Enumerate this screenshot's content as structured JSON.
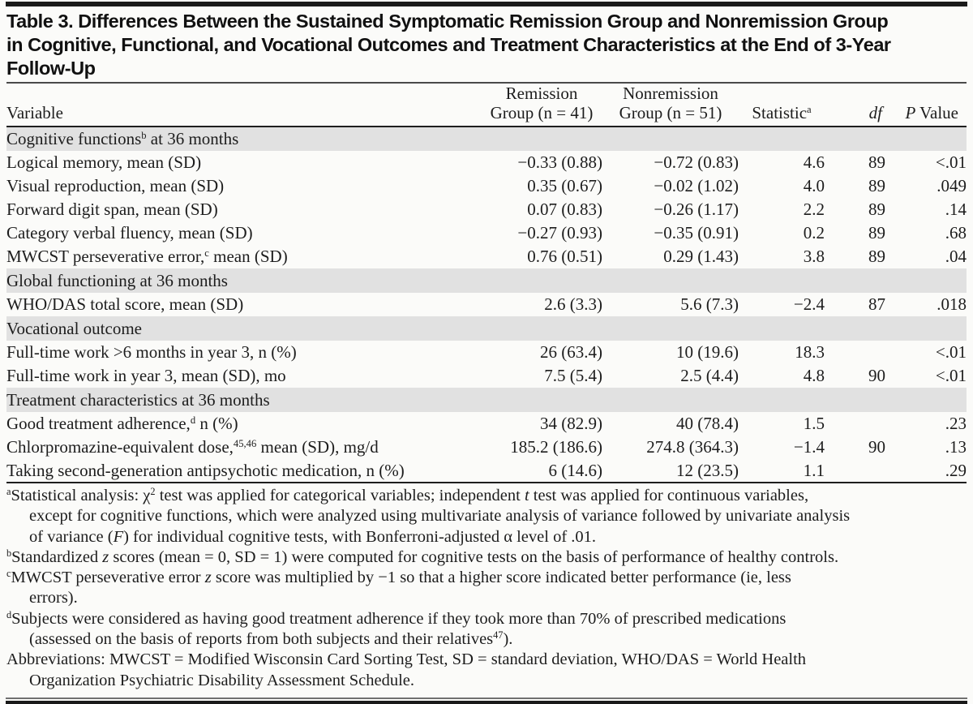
{
  "colors": {
    "section_band": "#e1e1e1",
    "top_rule": "#1a1a1a",
    "mid_rule": "#4a4a4a",
    "text": "#1d1d1d",
    "background": "#fbfbf9"
  },
  "title": {
    "lines": [
      "Table 3. Differences Between the Sustained Symptomatic Remission Group and Nonremission Group",
      "in Cognitive, Functional, and Vocational Outcomes and Treatment Characteristics at the End of 3-Year",
      "Follow-Up"
    ]
  },
  "table": {
    "columns": {
      "variable": {
        "label": "Variable"
      },
      "remission": {
        "line1": "Remission",
        "line2": "Group (n = 41)"
      },
      "nonremission": {
        "line1": "Nonremission",
        "line2": "Group (n = 51)"
      },
      "statistic": {
        "rich": [
          [
            "Statistic",
            ""
          ],
          [
            "a",
            "sup"
          ]
        ]
      },
      "df": {
        "rich": [
          [
            "df",
            "i"
          ]
        ]
      },
      "pvalue": {
        "rich": [
          [
            "P",
            "i"
          ],
          [
            " Value",
            ""
          ]
        ]
      }
    },
    "sections": [
      {
        "header_rich": [
          [
            "Cognitive functions",
            ""
          ],
          [
            "b",
            "sup"
          ],
          [
            " at 36 months",
            ""
          ]
        ],
        "rows": [
          {
            "variable": [
              [
                "Logical memory, mean (SD)",
                ""
              ]
            ],
            "remission": "−0.33 (0.88)",
            "nonremission": "−0.72 (0.83)",
            "statistic": "4.6",
            "df": "89",
            "p": "<.01"
          },
          {
            "variable": [
              [
                "Visual reproduction, mean (SD)",
                ""
              ]
            ],
            "remission": "0.35 (0.67)",
            "nonremission": "−0.02 (1.02)",
            "statistic": "4.0",
            "df": "89",
            "p": ".049"
          },
          {
            "variable": [
              [
                "Forward digit span, mean (SD)",
                ""
              ]
            ],
            "remission": "0.07 (0.83)",
            "nonremission": "−0.26 (1.17)",
            "statistic": "2.2",
            "df": "89",
            "p": ".14"
          },
          {
            "variable": [
              [
                "Category verbal fluency, mean (SD)",
                ""
              ]
            ],
            "remission": "−0.27 (0.93)",
            "nonremission": "−0.35 (0.91)",
            "statistic": "0.2",
            "df": "89",
            "p": ".68"
          },
          {
            "variable": [
              [
                "MWCST perseverative error,",
                ""
              ],
              [
                "c",
                "sup"
              ],
              [
                " mean (SD)",
                ""
              ]
            ],
            "remission": "0.76 (0.51)",
            "nonremission": "0.29 (1.43)",
            "statistic": "3.8",
            "df": "89",
            "p": ".04"
          }
        ]
      },
      {
        "header_rich": [
          [
            "Global functioning at 36 months",
            ""
          ]
        ],
        "rows": [
          {
            "variable": [
              [
                "WHO/DAS total score, mean (SD)",
                ""
              ]
            ],
            "remission": "2.6 (3.3)",
            "nonremission": "5.6 (7.3)",
            "statistic": "−2.4",
            "df": "87",
            "p": ".018"
          }
        ]
      },
      {
        "header_rich": [
          [
            "Vocational outcome",
            ""
          ]
        ],
        "rows": [
          {
            "variable": [
              [
                "Full-time work >6 months in year 3, n (%)",
                ""
              ]
            ],
            "remission": "26 (63.4)",
            "nonremission": "10 (19.6)",
            "statistic": "18.3",
            "df": "",
            "p": "<.01"
          },
          {
            "variable": [
              [
                "Full-time work in year 3, mean (SD), mo",
                ""
              ]
            ],
            "remission": "7.5 (5.4)",
            "nonremission": "2.5 (4.4)",
            "statistic": "4.8",
            "df": "90",
            "p": "<.01"
          }
        ]
      },
      {
        "header_rich": [
          [
            "Treatment characteristics at 36 months",
            ""
          ]
        ],
        "rows": [
          {
            "variable": [
              [
                "Good treatment adherence,",
                ""
              ],
              [
                "d",
                "sup"
              ],
              [
                " n (%)",
                ""
              ]
            ],
            "remission": "34 (82.9)",
            "nonremission": "40 (78.4)",
            "statistic": "1.5",
            "df": "",
            "p": ".23"
          },
          {
            "variable": [
              [
                "Chlorpromazine-equivalent dose,",
                ""
              ],
              [
                "45,46",
                "sup"
              ],
              [
                " mean (SD), mg/d",
                ""
              ]
            ],
            "remission": "185.2 (186.6)",
            "nonremission": "274.8 (364.3)",
            "statistic": "−1.4",
            "df": "90",
            "p": ".13"
          },
          {
            "variable": [
              [
                "Taking second-generation antipsychotic medication, n (%)",
                ""
              ]
            ],
            "remission": "6 (14.6)",
            "nonremission": "12 (23.5)",
            "statistic": "1.1",
            "df": "",
            "p": ".29"
          }
        ]
      }
    ]
  },
  "footnotes": [
    {
      "lines": [
        [
          [
            "a",
            "sup"
          ],
          [
            "Statistical analysis: χ",
            ""
          ],
          [
            "2",
            "sup"
          ],
          [
            " test was applied for categorical variables; independent ",
            ""
          ],
          [
            "t",
            "i"
          ],
          [
            " test was applied for continuous variables,",
            ""
          ]
        ],
        [
          [
            "except for cognitive functions, which were analyzed using multivariate analysis of variance followed by univariate analysis",
            ""
          ]
        ],
        [
          [
            "of variance (",
            ""
          ],
          [
            "F",
            "i"
          ],
          [
            ") for individual cognitive tests, with Bonferroni-adjusted α level of .01.",
            ""
          ]
        ]
      ]
    },
    {
      "lines": [
        [
          [
            "b",
            "sup"
          ],
          [
            "Standardized ",
            ""
          ],
          [
            "z",
            "i"
          ],
          [
            " scores (mean = 0, SD = 1) were computed for cognitive tests on the basis of performance of healthy controls.",
            ""
          ]
        ]
      ]
    },
    {
      "lines": [
        [
          [
            "c",
            "sup"
          ],
          [
            "MWCST perseverative error ",
            ""
          ],
          [
            "z",
            "i"
          ],
          [
            " score was multiplied by −1 so that a higher score indicated better performance (ie, less",
            ""
          ]
        ],
        [
          [
            "errors).",
            ""
          ]
        ]
      ]
    },
    {
      "lines": [
        [
          [
            "d",
            "sup"
          ],
          [
            "Subjects were considered as having good treatment adherence if they took more than 70% of prescribed medications",
            ""
          ]
        ],
        [
          [
            "(assessed on the basis of reports from both subjects and their relatives",
            ""
          ],
          [
            "47",
            "sup"
          ],
          [
            ").",
            ""
          ]
        ]
      ]
    },
    {
      "lines": [
        [
          [
            "Abbreviations: MWCST = Modified Wisconsin Card Sorting Test, SD = standard deviation, WHO/DAS = World Health",
            ""
          ]
        ],
        [
          [
            "Organization Psychiatric Disability Assessment Schedule.",
            ""
          ]
        ]
      ]
    }
  ]
}
